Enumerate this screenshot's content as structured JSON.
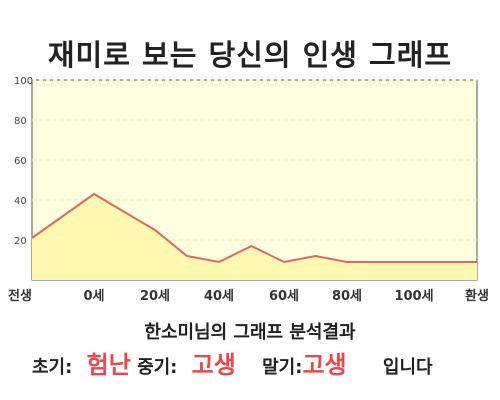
{
  "title": "재미로 보는 당신의 인생 그래프",
  "summary": "한소미님의 그래프 분석결과",
  "result": {
    "early_label": "초기:",
    "early_value": "험난",
    "middle_label": "중기:",
    "middle_value": "고생",
    "late_label": "말기:",
    "late_value": "고생",
    "suffix": "입니다"
  },
  "colors": {
    "plot_bg": "#ffffe0",
    "line": "#e06666",
    "fill": "#fff8b0",
    "highlight": "#e8484b"
  },
  "chart_data": {
    "type": "area",
    "y_ticks": [
      20,
      40,
      60,
      80,
      100
    ],
    "ylim": [
      0,
      100
    ],
    "x_ticks": [
      {
        "label": "전생",
        "x": -1
      },
      {
        "label": "0세",
        "x": 0
      },
      {
        "label": "20세",
        "x": 20
      },
      {
        "label": "40세",
        "x": 40
      },
      {
        "label": "60세",
        "x": 60
      },
      {
        "label": "80세",
        "x": 80
      },
      {
        "label": "100세",
        "x": 100
      },
      {
        "label": "환생",
        "x": 120
      }
    ],
    "series": [
      {
        "points": [
          {
            "x": -1,
            "y": 21
          },
          {
            "x": 0,
            "y": 43
          },
          {
            "x": 20,
            "y": 25
          },
          {
            "x": 30,
            "y": 12
          },
          {
            "x": 40,
            "y": 9
          },
          {
            "x": 50,
            "y": 17
          },
          {
            "x": 60,
            "y": 9
          },
          {
            "x": 70,
            "y": 12
          },
          {
            "x": 80,
            "y": 9
          },
          {
            "x": 90,
            "y": 9
          },
          {
            "x": 100,
            "y": 9
          },
          {
            "x": 110,
            "y": 9
          },
          {
            "x": 120,
            "y": 9
          }
        ]
      }
    ],
    "grid": true
  }
}
